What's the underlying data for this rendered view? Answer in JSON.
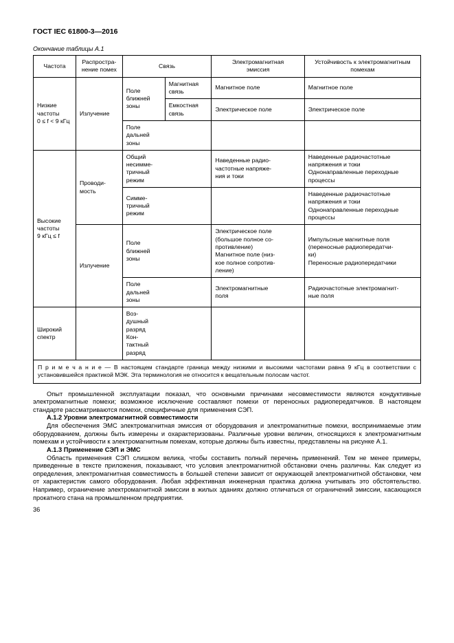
{
  "doc_header": "ГОСТ IEC 61800-3—2016",
  "table_caption": "Окончание таблицы А.1",
  "headers": {
    "frequency": "Частота",
    "propagation": "Распростра-\nнение помех",
    "coupling": "Связь",
    "emission": "Электромагнитная\nэмиссия",
    "immunity": "Устойчивость к электромагнитным\nпомехам"
  },
  "rows": {
    "low_freq": "Низкие\nчастоты\n0 ≤ f < 9 кГц",
    "low_prop": "Излучение",
    "near_field": "Поле\nближней\nзоны",
    "far_field": "Поле\nдальней\nзоны",
    "mag_coupling": "Магнитная\nсвязь",
    "cap_coupling": "Емкостная\nсвязь",
    "mag_field": "Магнитное поле",
    "elec_field": "Электрическое поле",
    "high_freq": "Высокие\nчастоты\n9 кГц ≤ f",
    "conducted": "Проводи-\nмость",
    "radiated": "Излучение",
    "common_mode": "Общий\nнесимме-\nтричный\nрежим",
    "diff_mode": "Симме-\nтричный\nрежим",
    "induced_rf": "Наведенные радио-\nчастотные напряже-\nния и токи",
    "induced_rf_imm": "Наведенные радиочастотные\nнапряжения и токи\nОднонаправленные переходные\nпроцессы",
    "induced_rf_imm2": "Наведенные радиочастотные\nнапряжения и токи\nОднонаправленные переходные\nпроцессы",
    "near_emis": "Электрическое поле\n(большое полное со-\nпротивление)\nМагнитное поле (низ-\nкое полное сопротив-\nление)",
    "near_imm": "Импульсные магнитные поля\n(переносные радиопередатчи-\nки)\nПереносные радиопередатчики",
    "far_emis": "Электромагнитные\nполя",
    "far_imm": "Радиочастотные электромагнит-\nные поля",
    "wide_spectrum": "Широкий\nспектр",
    "air_contact": "Воз-\nдушный\nразряд\nКон-\nтактный\nразряд"
  },
  "note": "П р и м е ч а н и е — В настоящем стандарте граница между низкими и высокими частотами равна 9 кГц в соответствии с установившейся практикой МЭК. Эта терминология не относится к вещательным полосам частот.",
  "para1": "Опыт промышленной эксплуатации показал, что основными причинами несовместимости являются кондуктивные электромагнитные помехи; возможное исключение составляют помехи от переносных радиопередатчиков. В настоящем стандарте рассматриваются помехи, специфичные для применения СЭП.",
  "sub1": "А.1.2 Уровни электромагнитной совместимости",
  "para2": "Для обеспечения ЭМС электромагнитная эмиссия от оборудования и электромагнитные помехи, воспринимаемые этим оборудованием, должны быть измерены и охарактеризованы. Различные уровни величин, относящихся к электромагнитным помехам и устойчивости к электромагнитным помехам, которые должны быть известны, представлены на рисунке А.1.",
  "sub2": "А.1.3 Применение СЭП и ЭМС",
  "para3": "Область применения СЭП слишком велика, чтобы составить полный перечень применений. Тем не менее примеры, приведенные в тексте приложения, показывают, что условия электромагнитной обстановки очень различны. Как следует из определения, электромагнитная совместимость в большей степени зависит от окружающей электромагнитной обстановки, чем от характеристик самого оборудования. Любая эффективная инженерная практика должна учитывать это обстоятельство. Например, ограничение электромагнитной эмиссии в жилых зданиях должно отличаться от ограничений эмиссии, касающихся прокатного стана на промышленном предприятии.",
  "page_number": "36"
}
